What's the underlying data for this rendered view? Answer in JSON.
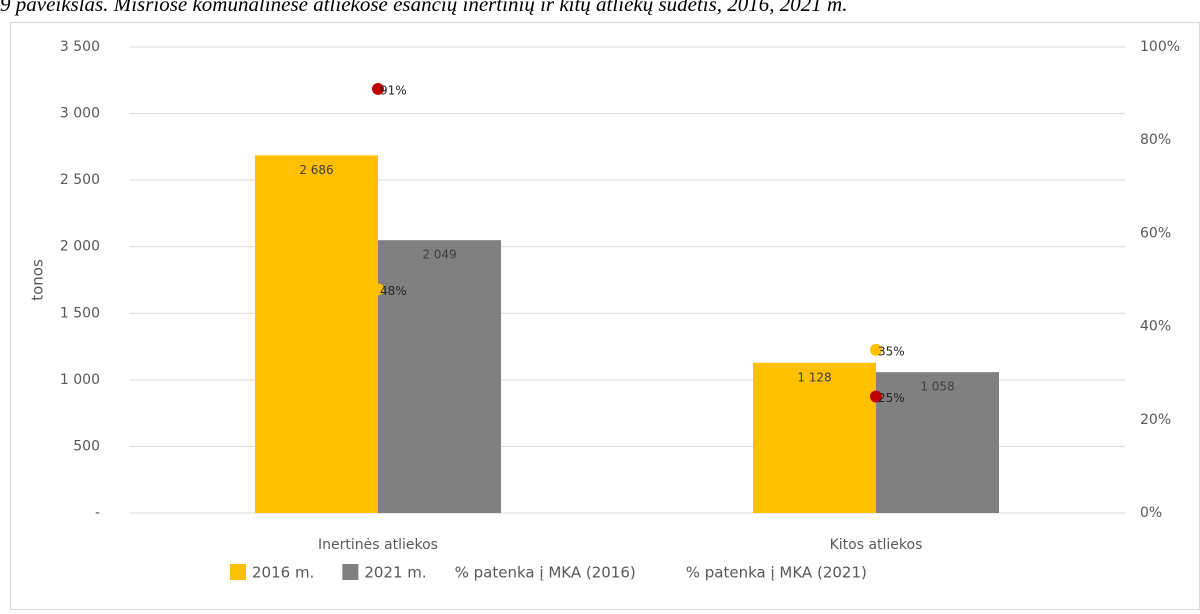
{
  "chart_data": {
    "type": "bar",
    "title": "9 paveikslas. Mišriose komunalinėse atliekose esančių inertinių ir kitų atliekų sudėtis, 2016, 2021 m.",
    "y_label": "tonos",
    "categories": [
      "Inertinės atliekos",
      "Kitos atliekos"
    ],
    "series": [
      {
        "name": "2016 m.",
        "color": "#FFC000",
        "values": [
          2686,
          1128
        ],
        "value_labels": [
          "2 686",
          "1 128"
        ]
      },
      {
        "name": "2021 m.",
        "color": "#808080",
        "values": [
          2049,
          1058
        ],
        "value_labels": [
          "2 049",
          "1 058"
        ]
      },
      {
        "name": "% patenka į MKA (2016)",
        "type": "scatter",
        "axis": "y2",
        "color": "#FFC000",
        "values": [
          48,
          35
        ],
        "value_labels": [
          "48%",
          "35%"
        ]
      },
      {
        "name": "% patenka į MKA (2021)",
        "type": "scatter",
        "axis": "y2",
        "color": "#C00000",
        "values": [
          91,
          25
        ],
        "value_labels": [
          "91%",
          "25%"
        ]
      }
    ],
    "ylim": [
      0,
      3500
    ],
    "yticks": [
      {
        "value": 0,
        "label": "-"
      },
      500,
      {
        "value": 1000,
        "label": "1 000"
      },
      {
        "value": 1500,
        "label": "1 500"
      },
      {
        "value": 2000,
        "label": "2 000"
      },
      {
        "value": 2500,
        "label": "2 500"
      },
      {
        "value": 3000,
        "label": "3 000"
      },
      {
        "value": 3500,
        "label": "3 500"
      }
    ],
    "y2lim": [
      0,
      100
    ],
    "y2ticks": [
      {
        "value": 0,
        "label": "0%"
      },
      {
        "value": 20,
        "label": "20%"
      },
      {
        "value": 40,
        "label": "40%"
      },
      {
        "value": 60,
        "label": "60%"
      },
      {
        "value": 80,
        "label": "80%"
      },
      {
        "value": 100,
        "label": "100%"
      }
    ],
    "grid": true,
    "legend": "bottom"
  }
}
